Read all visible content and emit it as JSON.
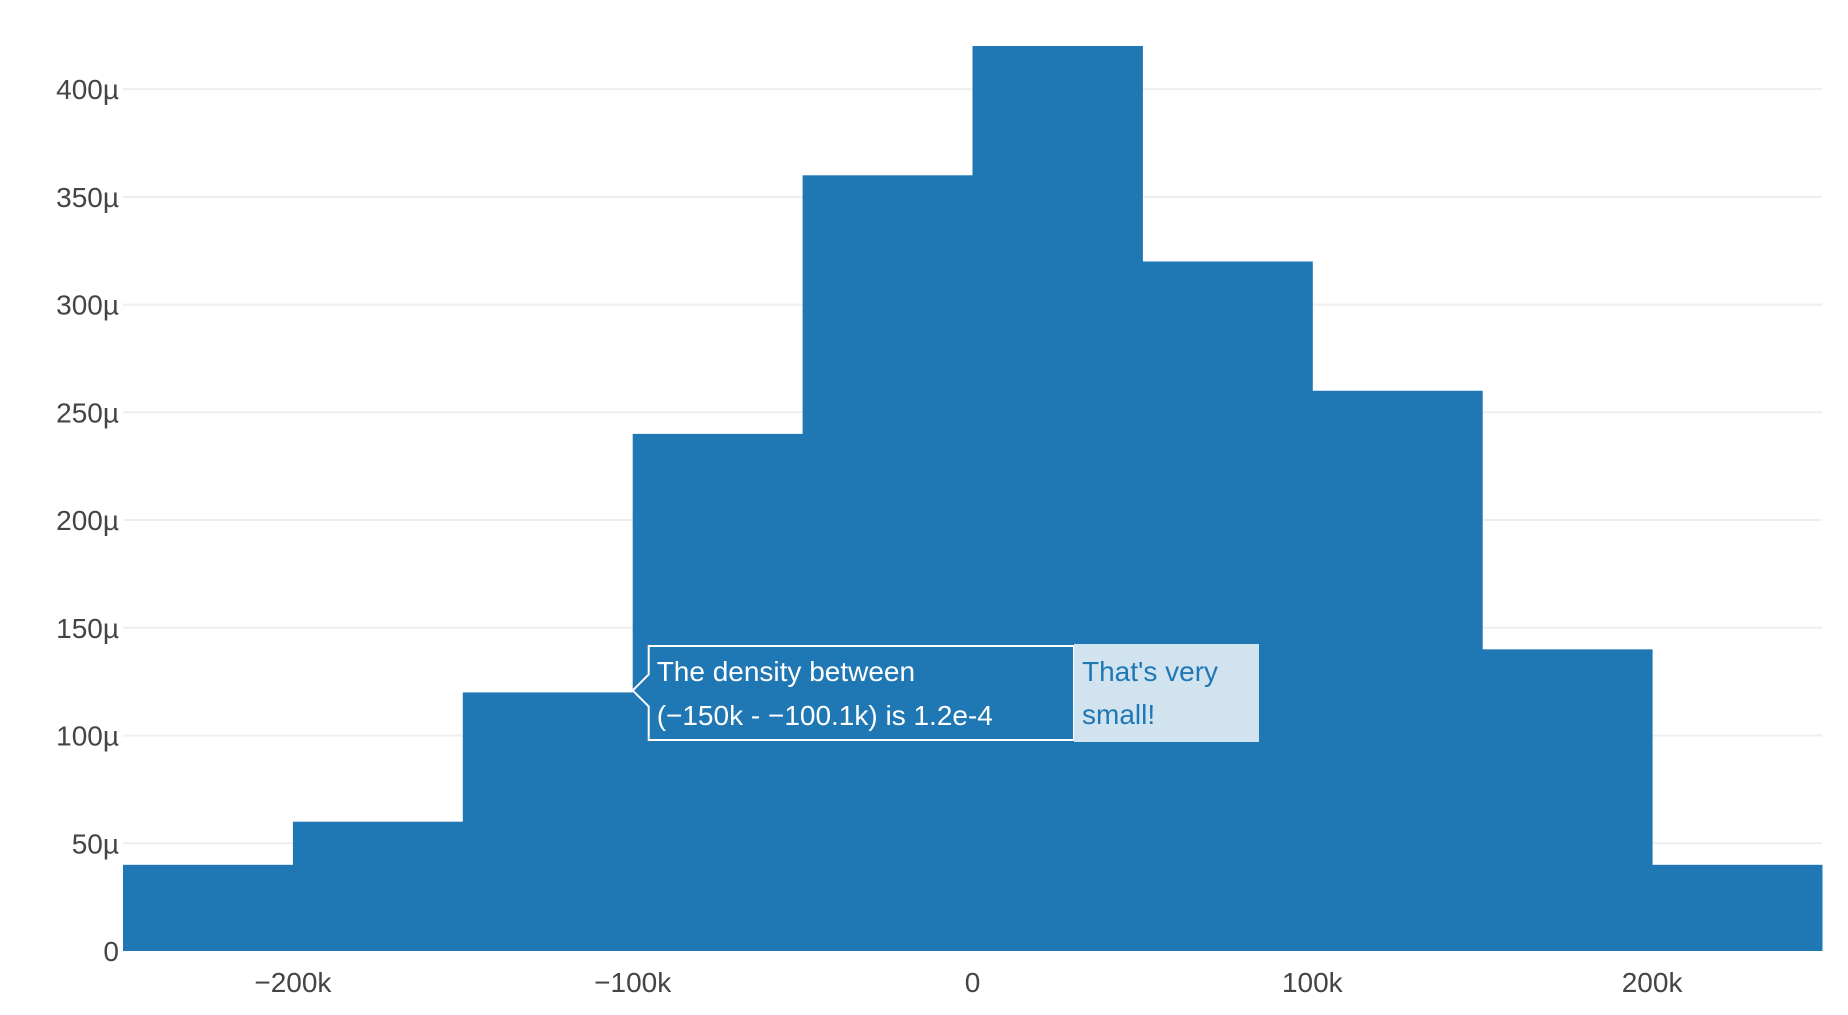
{
  "colors": {
    "bar": "#1f77b4",
    "grid": "#eeeeee",
    "axis_text": "#444444",
    "hover_label_text": "#ffffff",
    "hover_label_border": "#ffffff",
    "hover_name_bg": "#d2e3f0",
    "hover_name_text": "#1f77b4",
    "background": "#ffffff"
  },
  "chart_data": {
    "type": "bar",
    "histogram": true,
    "histnorm": "probability density",
    "bin_size": 50000,
    "bins": [
      {
        "start": -250000,
        "end": -200000,
        "value": 4e-05
      },
      {
        "start": -200000,
        "end": -150000,
        "value": 6e-05
      },
      {
        "start": -150000,
        "end": -100000,
        "value": 0.00012
      },
      {
        "start": -100000,
        "end": -50000,
        "value": 0.00024
      },
      {
        "start": -50000,
        "end": 0,
        "value": 0.00036
      },
      {
        "start": 0,
        "end": 50000,
        "value": 0.00042
      },
      {
        "start": 50000,
        "end": 100000,
        "value": 0.00032
      },
      {
        "start": 100000,
        "end": 150000,
        "value": 0.00026
      },
      {
        "start": 150000,
        "end": 200000,
        "value": 0.00014
      },
      {
        "start": 200000,
        "end": 250000,
        "value": 4e-05
      }
    ],
    "xlim": [
      -250000,
      250000
    ],
    "ylim": [
      0,
      0.00042
    ],
    "x_ticks": [
      {
        "value": -200000,
        "label": "−200k"
      },
      {
        "value": -100000,
        "label": "−100k"
      },
      {
        "value": 0,
        "label": "0"
      },
      {
        "value": 100000,
        "label": "100k"
      },
      {
        "value": 200000,
        "label": "200k"
      }
    ],
    "y_ticks": [
      {
        "value": 0,
        "label": "0"
      },
      {
        "value": 5e-05,
        "label": "50µ"
      },
      {
        "value": 0.0001,
        "label": "100µ"
      },
      {
        "value": 0.00015,
        "label": "150µ"
      },
      {
        "value": 0.0002,
        "label": "200µ"
      },
      {
        "value": 0.00025,
        "label": "250µ"
      },
      {
        "value": 0.0003,
        "label": "300µ"
      },
      {
        "value": 0.00035,
        "label": "350µ"
      },
      {
        "value": 0.0004,
        "label": "400µ"
      }
    ],
    "grid": true,
    "title": "",
    "xlabel": "",
    "ylabel": "",
    "hover": {
      "bin_index": 2,
      "lines": [
        "The density between",
        " (−150k - −100.1k) is 1.2e-4"
      ],
      "name_lines": [
        "That's very",
        " small!"
      ]
    }
  }
}
